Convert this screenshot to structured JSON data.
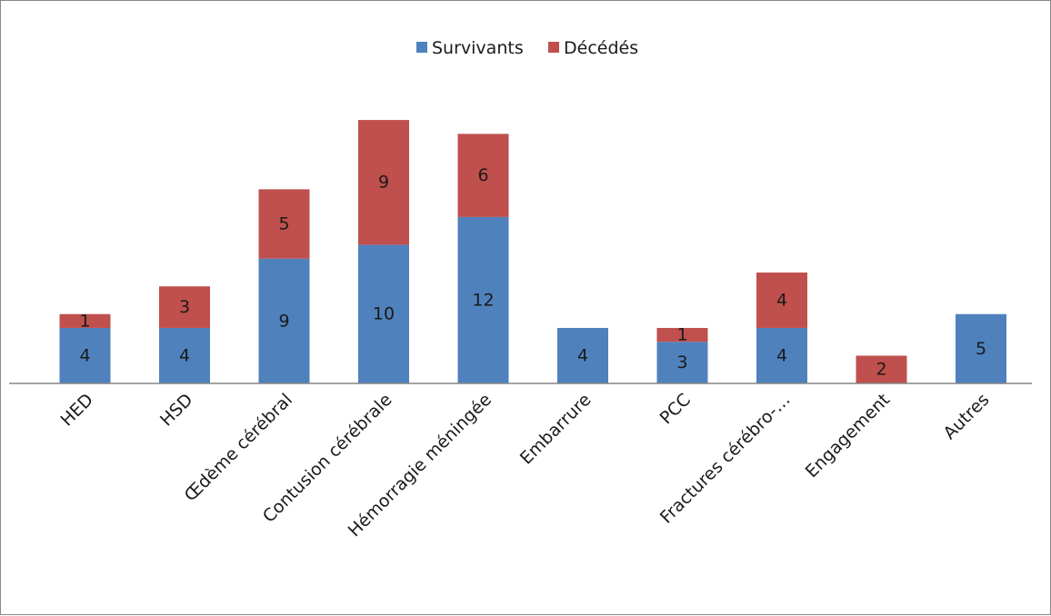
{
  "chart_data": {
    "type": "bar",
    "stacked": true,
    "categories": [
      "HED",
      "HSD",
      "Œdème cérébral",
      "Contusion cérébrale",
      "Hémorragie méningée",
      "Embarrure",
      "PCC",
      "Fractures cérébro-…",
      "Engagement",
      "Autres"
    ],
    "series": [
      {
        "name": "Survivants",
        "color": "#4f81bd",
        "values": [
          4,
          4,
          9,
          10,
          12,
          4,
          3,
          4,
          0,
          5
        ]
      },
      {
        "name": "Décédés",
        "color": "#c0504d",
        "values": [
          1,
          3,
          5,
          9,
          6,
          0,
          1,
          4,
          2,
          0
        ]
      }
    ],
    "data_labels": {
      "Survivants": [
        "4",
        "4",
        "9",
        "10",
        "12",
        "4",
        "3",
        "4",
        "",
        "5"
      ],
      "Décédés": [
        "1",
        "3",
        "5",
        "9",
        "6",
        "",
        "1",
        "4",
        "2",
        ""
      ]
    },
    "ylim": [
      0,
      19
    ],
    "legend_position": "top-center",
    "grid": false,
    "title": "",
    "xlabel": "",
    "ylabel": ""
  }
}
